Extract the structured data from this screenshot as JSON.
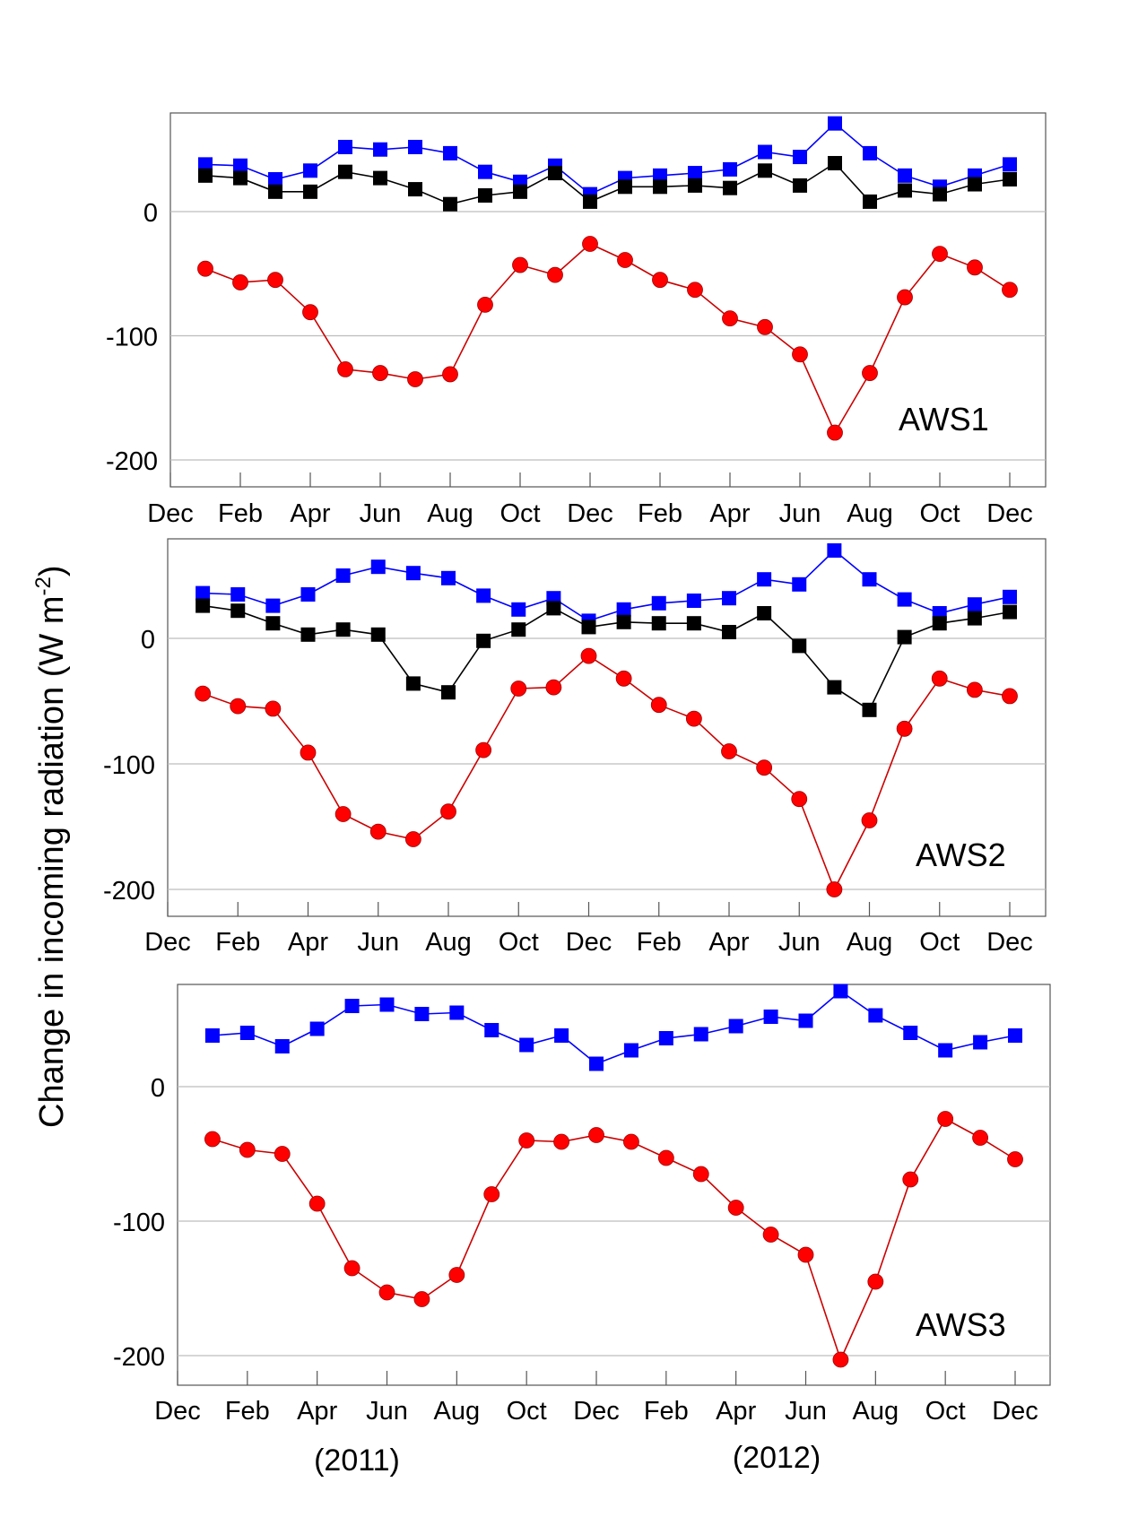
{
  "figure": {
    "ylabel_main": "Change in incoming radiation (W m",
    "ylabel_sup": "-2",
    "ylabel_close": ")",
    "year_labels": [
      "(2011)",
      "(2012)"
    ]
  },
  "colors": {
    "blue_series": "#0000ff",
    "black_series": "#000000",
    "red_series": "#ff0000",
    "red_line": "#cc0000",
    "grid": "#bdbdbd",
    "frame": "#555555"
  },
  "chart_data": [
    {
      "type": "line",
      "panel_label": "AWS1",
      "x_tick_labels": [
        "Dec",
        "Feb",
        "Apr",
        "Jun",
        "Aug",
        "Oct",
        "Dec",
        "Feb",
        "Apr",
        "Jun",
        "Aug",
        "Oct",
        "Dec"
      ],
      "y_ticks": [
        0,
        -100,
        -200
      ],
      "ylim": [
        -220,
        80
      ],
      "grid": true,
      "series": [
        {
          "marker": "square",
          "color": "blue",
          "values": [
            38,
            37,
            26,
            33,
            52,
            50,
            52,
            47,
            32,
            24,
            37,
            14,
            27,
            29,
            31,
            34,
            48,
            44,
            71,
            47,
            29,
            20,
            29,
            38
          ]
        },
        {
          "marker": "square",
          "color": "black",
          "values": [
            29,
            27,
            16,
            16,
            32,
            27,
            18,
            6,
            13,
            16,
            31,
            8,
            20,
            20,
            21,
            19,
            33,
            21,
            39,
            8,
            17,
            14,
            22,
            26
          ]
        },
        {
          "marker": "circle",
          "color": "red",
          "values": [
            -46,
            -57,
            -55,
            -81,
            -127,
            -130,
            -135,
            -131,
            -75,
            -43,
            -51,
            -26,
            -39,
            -55,
            -63,
            -86,
            -93,
            -115,
            -178,
            -130,
            -69,
            -34,
            -45,
            -63
          ]
        }
      ]
    },
    {
      "type": "line",
      "panel_label": "AWS2",
      "x_tick_labels": [
        "Dec",
        "Feb",
        "Apr",
        "Jun",
        "Aug",
        "Oct",
        "Dec",
        "Feb",
        "Apr",
        "Jun",
        "Aug",
        "Oct",
        "Dec"
      ],
      "y_ticks": [
        0,
        -100,
        -200
      ],
      "ylim": [
        -220,
        80
      ],
      "grid": true,
      "series": [
        {
          "marker": "square",
          "color": "blue",
          "values": [
            36,
            35,
            26,
            35,
            50,
            57,
            52,
            48,
            34,
            23,
            32,
            14,
            23,
            28,
            30,
            32,
            47,
            43,
            70,
            47,
            31,
            20,
            27,
            33
          ]
        },
        {
          "marker": "square",
          "color": "black",
          "values": [
            26,
            22,
            12,
            3,
            7,
            3,
            -36,
            -43,
            -2,
            7,
            24,
            9,
            13,
            12,
            12,
            5,
            20,
            -6,
            -39,
            -57,
            1,
            12,
            16,
            21
          ]
        },
        {
          "marker": "circle",
          "color": "red",
          "values": [
            -44,
            -54,
            -56,
            -91,
            -140,
            -154,
            -160,
            -138,
            -89,
            -40,
            -39,
            -14,
            -32,
            -53,
            -64,
            -90,
            -103,
            -128,
            -200,
            -145,
            -72,
            -32,
            -41,
            -46
          ]
        }
      ]
    },
    {
      "type": "line",
      "panel_label": "AWS3",
      "x_tick_labels": [
        "Dec",
        "Feb",
        "Apr",
        "Jun",
        "Aug",
        "Oct",
        "Dec",
        "Feb",
        "Apr",
        "Jun",
        "Aug",
        "Oct",
        "Dec"
      ],
      "y_ticks": [
        0,
        -100,
        -200
      ],
      "ylim": [
        -220,
        80
      ],
      "grid": true,
      "series": [
        {
          "marker": "square",
          "color": "blue",
          "values": [
            38,
            40,
            30,
            43,
            60,
            61,
            54,
            55,
            42,
            31,
            38,
            17,
            27,
            36,
            39,
            45,
            52,
            49,
            71,
            53,
            40,
            27,
            33,
            38
          ]
        },
        {
          "marker": "circle",
          "color": "red",
          "values": [
            -39,
            -47,
            -50,
            -87,
            -135,
            -153,
            -158,
            -140,
            -80,
            -40,
            -41,
            -36,
            -41,
            -53,
            -65,
            -90,
            -110,
            -125,
            -203,
            -145,
            -69,
            -24,
            -38,
            -54
          ]
        }
      ]
    }
  ]
}
